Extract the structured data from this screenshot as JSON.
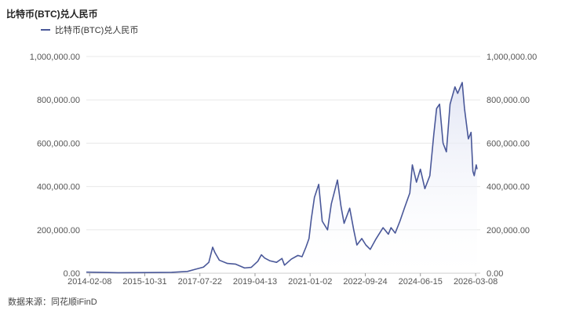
{
  "header": {
    "title": "比特币(BTC)兑人民币"
  },
  "footer": {
    "source": "数据来源：同花顺iFinD"
  },
  "colors": {
    "line": "#4a5899",
    "area_top": "#dfe3f3",
    "grid": "#e8e8e8"
  },
  "chart_data": {
    "type": "area",
    "title": "比特币(BTC)兑人民币",
    "xlabel": "",
    "ylabel": "",
    "legend": "top-left",
    "grid": true,
    "ylim": [
      0,
      1000000
    ],
    "y_ticks": [
      "0.00",
      "200,000.00",
      "400,000.00",
      "600,000.00",
      "800,000.00",
      "1,000,000.00"
    ],
    "x_ticks": [
      "2014-02-08",
      "2015-10-31",
      "2017-07-22",
      "2019-04-13",
      "2021-01-02",
      "2022-09-24",
      "2024-06-15",
      "2026-03-08"
    ],
    "x_range": [
      "2014-01-01",
      "2026-04-30"
    ],
    "series": [
      {
        "name": "比特币(BTC)兑人民币",
        "points": [
          [
            "2014-01-01",
            5000
          ],
          [
            "2014-06-01",
            4000
          ],
          [
            "2015-01-01",
            2000
          ],
          [
            "2016-01-01",
            2800
          ],
          [
            "2016-09-01",
            4000
          ],
          [
            "2017-03-01",
            8000
          ],
          [
            "2017-06-01",
            18000
          ],
          [
            "2017-09-01",
            28000
          ],
          [
            "2017-11-01",
            50000
          ],
          [
            "2017-12-15",
            120000
          ],
          [
            "2018-01-10",
            95000
          ],
          [
            "2018-03-01",
            60000
          ],
          [
            "2018-06-01",
            45000
          ],
          [
            "2018-09-01",
            42000
          ],
          [
            "2018-12-15",
            24000
          ],
          [
            "2019-03-01",
            27000
          ],
          [
            "2019-05-15",
            55000
          ],
          [
            "2019-06-25",
            85000
          ],
          [
            "2019-08-01",
            70000
          ],
          [
            "2019-10-01",
            57000
          ],
          [
            "2019-12-15",
            50000
          ],
          [
            "2020-02-15",
            68000
          ],
          [
            "2020-03-15",
            37000
          ],
          [
            "2020-06-01",
            65000
          ],
          [
            "2020-08-15",
            82000
          ],
          [
            "2020-10-01",
            76000
          ],
          [
            "2020-11-15",
            120000
          ],
          [
            "2020-12-20",
            160000
          ],
          [
            "2021-01-15",
            250000
          ],
          [
            "2021-02-20",
            350000
          ],
          [
            "2021-04-10",
            410000
          ],
          [
            "2021-05-20",
            240000
          ],
          [
            "2021-07-20",
            200000
          ],
          [
            "2021-09-01",
            320000
          ],
          [
            "2021-11-10",
            430000
          ],
          [
            "2021-12-20",
            310000
          ],
          [
            "2022-01-25",
            230000
          ],
          [
            "2022-03-30",
            300000
          ],
          [
            "2022-05-15",
            200000
          ],
          [
            "2022-06-20",
            130000
          ],
          [
            "2022-08-15",
            160000
          ],
          [
            "2022-10-01",
            130000
          ],
          [
            "2022-11-20",
            110000
          ],
          [
            "2023-01-20",
            155000
          ],
          [
            "2023-04-15",
            210000
          ],
          [
            "2023-06-15",
            180000
          ],
          [
            "2023-07-15",
            210000
          ],
          [
            "2023-09-01",
            185000
          ],
          [
            "2023-10-25",
            240000
          ],
          [
            "2023-12-15",
            300000
          ],
          [
            "2024-02-15",
            370000
          ],
          [
            "2024-03-15",
            500000
          ],
          [
            "2024-05-01",
            420000
          ],
          [
            "2024-06-15",
            480000
          ],
          [
            "2024-08-05",
            390000
          ],
          [
            "2024-10-01",
            450000
          ],
          [
            "2024-11-15",
            640000
          ],
          [
            "2024-12-17",
            760000
          ],
          [
            "2025-01-20",
            780000
          ],
          [
            "2025-03-01",
            600000
          ],
          [
            "2025-04-08",
            560000
          ],
          [
            "2025-05-20",
            780000
          ],
          [
            "2025-07-15",
            860000
          ],
          [
            "2025-08-15",
            830000
          ],
          [
            "2025-10-06",
            880000
          ],
          [
            "2025-11-01",
            760000
          ],
          [
            "2025-12-15",
            620000
          ],
          [
            "2026-01-15",
            650000
          ],
          [
            "2026-02-05",
            470000
          ],
          [
            "2026-02-20",
            450000
          ],
          [
            "2026-03-15",
            500000
          ],
          [
            "2026-03-25",
            480000
          ]
        ]
      }
    ]
  }
}
